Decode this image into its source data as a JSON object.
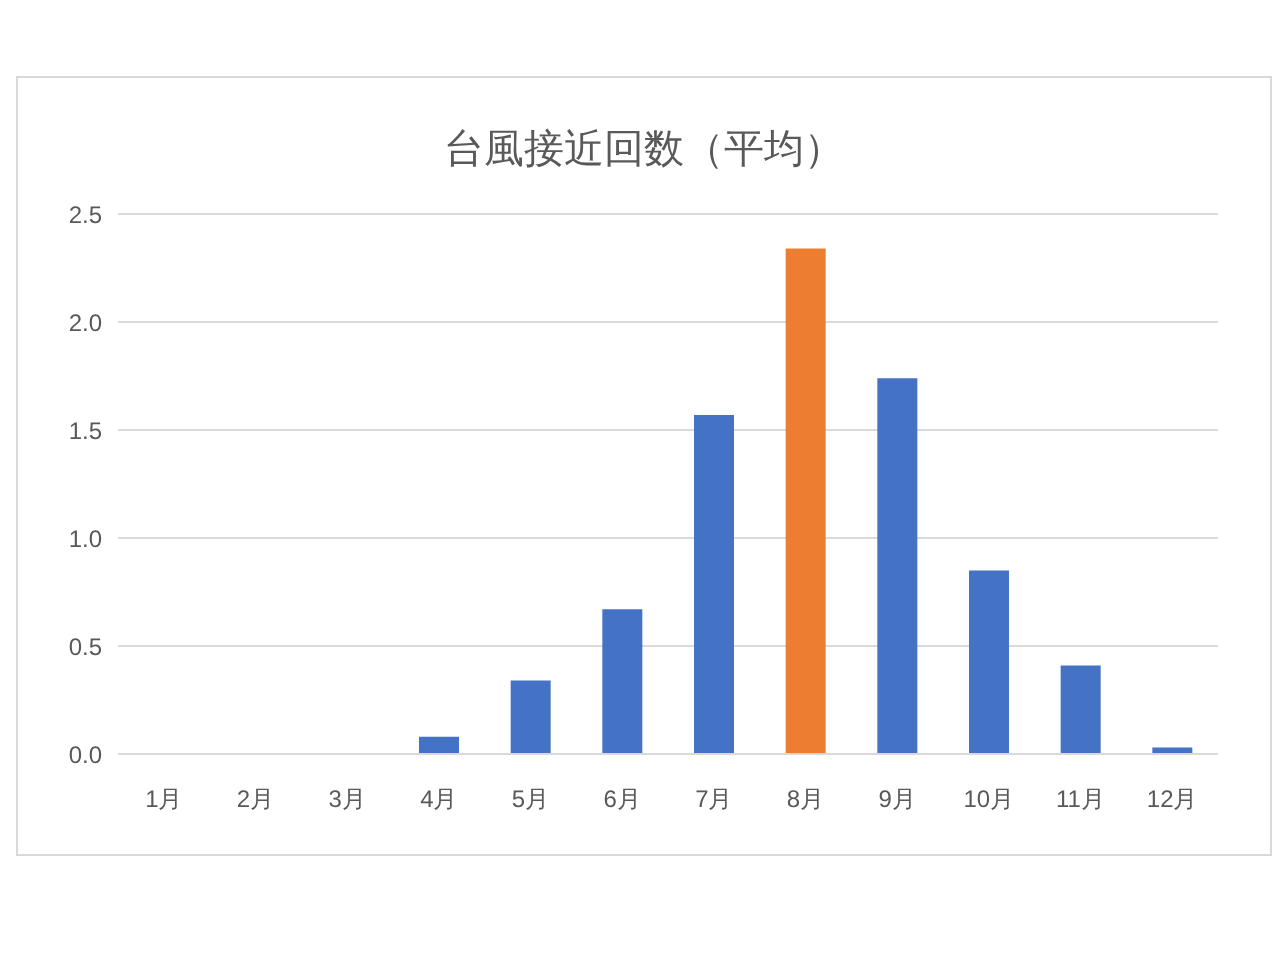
{
  "chart_data": {
    "type": "bar",
    "title": "台風接近回数（平均）",
    "categories": [
      "1月",
      "2月",
      "3月",
      "4月",
      "5月",
      "6月",
      "7月",
      "8月",
      "9月",
      "10月",
      "11月",
      "12月"
    ],
    "values": [
      0,
      0,
      0,
      0.08,
      0.34,
      0.67,
      1.57,
      2.34,
      1.74,
      0.85,
      0.41,
      0.03
    ],
    "colors": [
      "#4472c4",
      "#4472c4",
      "#4472c4",
      "#4472c4",
      "#4472c4",
      "#4472c4",
      "#4472c4",
      "#ed7d31",
      "#4472c4",
      "#4472c4",
      "#4472c4",
      "#4472c4"
    ],
    "ylim": [
      0,
      2.5
    ],
    "yticks": [
      {
        "value": 0,
        "label": "0.0"
      },
      {
        "value": 0.5,
        "label": "0.5"
      },
      {
        "value": 1,
        "label": "1.0"
      },
      {
        "value": 1.5,
        "label": "1.5"
      },
      {
        "value": 2,
        "label": "2.0"
      },
      {
        "value": 2.5,
        "label": "2.5"
      }
    ],
    "grid": "y"
  }
}
